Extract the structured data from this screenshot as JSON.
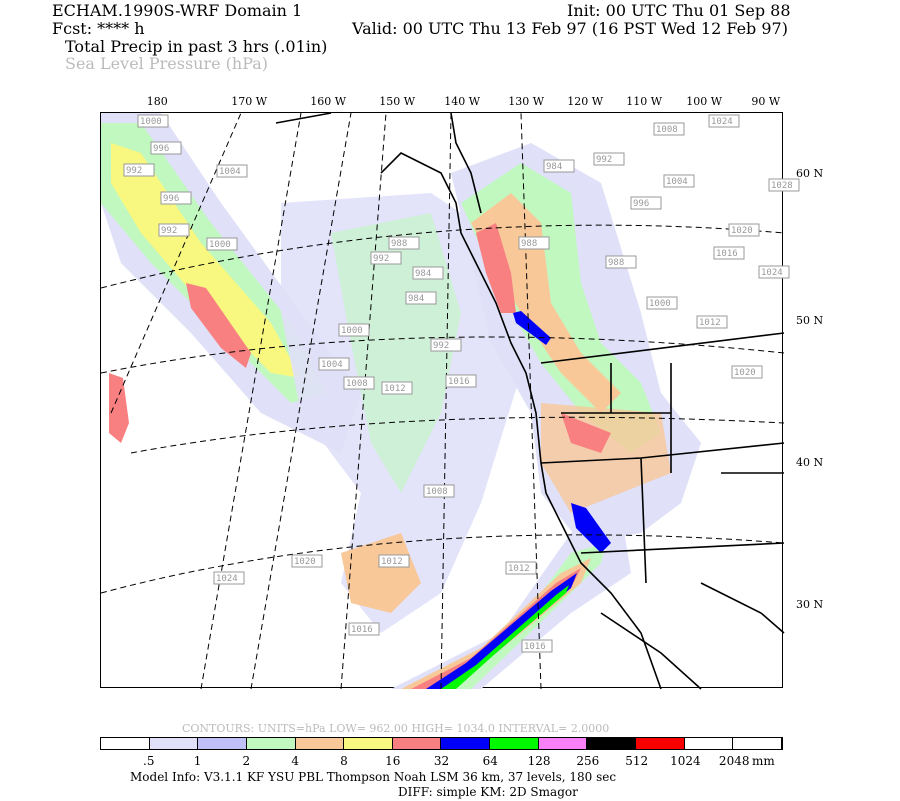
{
  "header": {
    "title": "ECHAM.1990S-WRF Domain 1",
    "init": "Init: 00 UTC Thu 01 Sep 88",
    "fcst": "Fcst: **** h",
    "valid": "Valid: 00 UTC Thu 13 Feb 97 (16 PST Wed 12 Feb 97)",
    "field1": "Total Precip in past 3 hrs (.01in)",
    "field2": "Sea Level Pressure (hPa)"
  },
  "map": {
    "lon_labels": [
      "180",
      "170 W",
      "160 W",
      "150 W",
      "140 W",
      "130 W",
      "120 W",
      "110 W",
      "100 W",
      "90 W"
    ],
    "lat_labels": [
      "60 N",
      "50 N",
      "40 N",
      "30 N"
    ],
    "pressure_labels": [
      "1000",
      "996",
      "992",
      "996",
      "992",
      "1000",
      "1004",
      "1008",
      "1024",
      "992",
      "984",
      "1004",
      "996",
      "1020",
      "1016",
      "1024",
      "1028",
      "988",
      "1000",
      "1012",
      "1020",
      "988",
      "984",
      "988",
      "992",
      "984",
      "1000",
      "992",
      "1004",
      "1008",
      "1012",
      "1016",
      "1008",
      "1012",
      "1016",
      "1012",
      "1020",
      "1024",
      "1016"
    ]
  },
  "contours": "CONTOURS:  UNITS=hPa  LOW=  962.00     HIGH=  1034.0     INTERVAL=   2.0000",
  "legend": {
    "colors": [
      "#ffffff",
      "#e0e0f8",
      "#c0c0f8",
      "#c0f8c0",
      "#f8c898",
      "#f8f880",
      "#f88080",
      "#0000f8",
      "#00f800",
      "#f880f8",
      "#000000",
      "#f80000",
      "#ffffff",
      "#ffffff"
    ],
    "labels": [
      ".5",
      "1",
      "2",
      "4",
      "8",
      "16",
      "32",
      "64",
      "128",
      "256",
      "512",
      "1024",
      "2048"
    ],
    "unit": "mm"
  },
  "footer": {
    "model_info": "Model Info: V3.1.1    KF        YSU PBL   Thompson     Noah LSM  36 km,    37 levels,  180 sec",
    "diff": "DIFF: simple KM: 2D Smagor"
  }
}
